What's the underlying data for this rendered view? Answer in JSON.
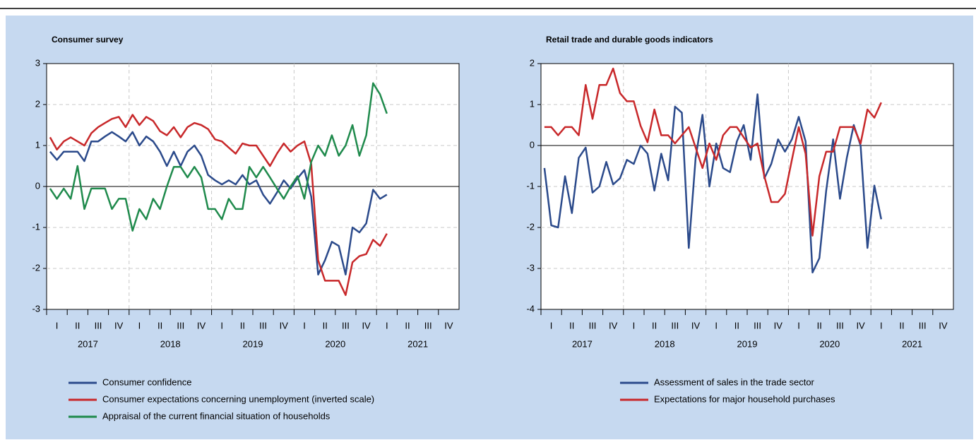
{
  "chart_data": [
    {
      "type": "line",
      "title": "Consumer survey",
      "years": [
        2017,
        2018,
        2019,
        2020,
        2021
      ],
      "quarters": [
        "I",
        "II",
        "III",
        "IV"
      ],
      "ylim": [
        -3,
        3
      ],
      "yticks": [
        3,
        2,
        1,
        0,
        -1,
        -2,
        -3
      ],
      "grid": true,
      "series": [
        {
          "name": "Consumer confidence",
          "color": "#2b4a8b",
          "values": [
            0.85,
            0.65,
            0.85,
            0.85,
            0.85,
            0.62,
            1.1,
            1.1,
            1.22,
            1.33,
            1.22,
            1.1,
            1.33,
            1.0,
            1.22,
            1.1,
            0.85,
            0.5,
            0.85,
            0.5,
            0.85,
            1.0,
            0.75,
            0.28,
            0.15,
            0.05,
            0.15,
            0.05,
            0.28,
            0.05,
            0.15,
            -0.2,
            -0.42,
            -0.15,
            0.15,
            -0.05,
            0.2,
            0.4,
            -0.25,
            -2.15,
            -1.8,
            -1.35,
            -1.45,
            -2.15,
            -1.0,
            -1.12,
            -0.9,
            -0.08,
            -0.3,
            -0.2
          ]
        },
        {
          "name": "Consumer expectations concerning unemployment (inverted scale)",
          "color": "#c8282a",
          "values": [
            1.2,
            0.9,
            1.1,
            1.2,
            1.1,
            1.0,
            1.3,
            1.45,
            1.55,
            1.65,
            1.7,
            1.45,
            1.75,
            1.5,
            1.7,
            1.6,
            1.35,
            1.25,
            1.45,
            1.2,
            1.45,
            1.55,
            1.5,
            1.4,
            1.15,
            1.1,
            0.95,
            0.8,
            1.05,
            1.0,
            1.0,
            0.75,
            0.5,
            0.8,
            1.05,
            0.85,
            1.0,
            1.1,
            0.55,
            -1.8,
            -2.3,
            -2.3,
            -2.3,
            -2.65,
            -1.85,
            -1.7,
            -1.65,
            -1.3,
            -1.45,
            -1.15
          ]
        },
        {
          "name": "Appraisal of the current financial situation of households",
          "color": "#1f8a4c",
          "values": [
            -0.05,
            -0.3,
            -0.05,
            -0.3,
            0.5,
            -0.55,
            -0.05,
            -0.05,
            -0.05,
            -0.55,
            -0.3,
            -0.3,
            -1.08,
            -0.55,
            -0.8,
            -0.3,
            -0.55,
            0.0,
            0.48,
            0.48,
            0.22,
            0.48,
            0.22,
            -0.55,
            -0.55,
            -0.8,
            -0.3,
            -0.55,
            -0.55,
            0.48,
            0.22,
            0.48,
            0.22,
            -0.05,
            -0.3,
            0.0,
            0.25,
            -0.3,
            0.6,
            1.0,
            0.75,
            1.25,
            0.75,
            1.0,
            1.5,
            0.75,
            1.25,
            2.52,
            2.25,
            1.78
          ]
        }
      ]
    },
    {
      "type": "line",
      "title": "Retail trade and durable goods indicators",
      "years": [
        2017,
        2018,
        2019,
        2020,
        2021
      ],
      "quarters": [
        "I",
        "II",
        "III",
        "IV"
      ],
      "ylim": [
        -4,
        2
      ],
      "yticks": [
        2,
        1,
        0,
        -1,
        -2,
        -3,
        -4
      ],
      "grid": true,
      "series": [
        {
          "name": "Assessment of sales in the trade sector",
          "color": "#2b4a8b",
          "values": [
            -0.55,
            -1.95,
            -2.0,
            -0.75,
            -1.65,
            -0.3,
            -0.05,
            -1.15,
            -1.0,
            -0.4,
            -0.95,
            -0.8,
            -0.35,
            -0.45,
            0.0,
            -0.2,
            -1.1,
            -0.2,
            -0.85,
            0.95,
            0.8,
            -2.5,
            -0.3,
            0.75,
            -1.0,
            0.05,
            -0.55,
            -0.65,
            0.1,
            0.5,
            -0.35,
            1.25,
            -0.8,
            -0.45,
            0.15,
            -0.15,
            0.15,
            0.7,
            0.1,
            -3.1,
            -2.75,
            -1.1,
            0.15,
            -1.3,
            -0.3,
            0.5,
            0.0,
            -2.5,
            -0.98,
            -1.8
          ]
        },
        {
          "name": "Expectations for major household purchases",
          "color": "#c8282a",
          "values": [
            0.45,
            0.45,
            0.25,
            0.45,
            0.45,
            0.25,
            1.48,
            0.65,
            1.48,
            1.48,
            1.88,
            1.28,
            1.08,
            1.08,
            0.48,
            0.08,
            0.88,
            0.25,
            0.25,
            0.05,
            0.25,
            0.45,
            -0.05,
            -0.55,
            0.05,
            -0.35,
            0.25,
            0.45,
            0.45,
            0.2,
            -0.05,
            0.05,
            -0.75,
            -1.38,
            -1.38,
            -1.18,
            -0.35,
            0.45,
            -0.2,
            -2.2,
            -0.75,
            -0.15,
            -0.15,
            0.45,
            0.45,
            0.45,
            0.05,
            0.88,
            0.68,
            1.05
          ]
        }
      ]
    }
  ]
}
